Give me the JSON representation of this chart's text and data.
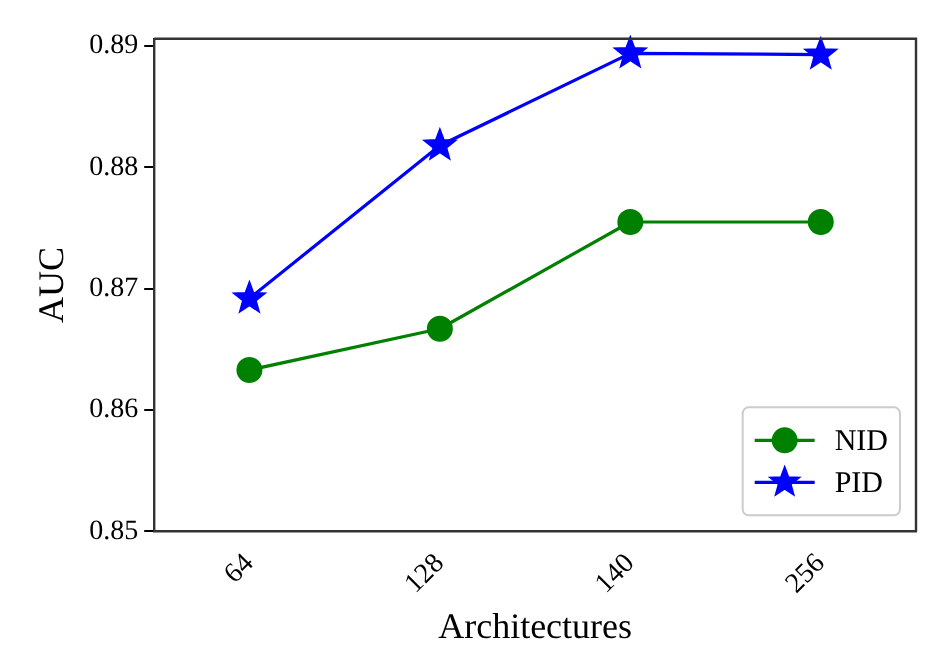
{
  "chart_data": {
    "type": "line",
    "xlabel": "Architectures",
    "ylabel": "AUC",
    "categories": [
      "64",
      "128",
      "140",
      "256"
    ],
    "series": [
      {
        "name": "NID",
        "color": "#008000",
        "marker": "circle",
        "values": [
          0.8633,
          0.8667,
          0.8755,
          0.8755
        ]
      },
      {
        "name": "PID",
        "color": "#0000ff",
        "marker": "star",
        "values": [
          0.8692,
          0.8818,
          0.8894,
          0.8893
        ]
      }
    ],
    "ylim": [
      0.85,
      0.8906
    ],
    "yticks": [
      0.85,
      0.86,
      0.87,
      0.88,
      0.89
    ],
    "grid": false,
    "legend": "bottom right"
  }
}
